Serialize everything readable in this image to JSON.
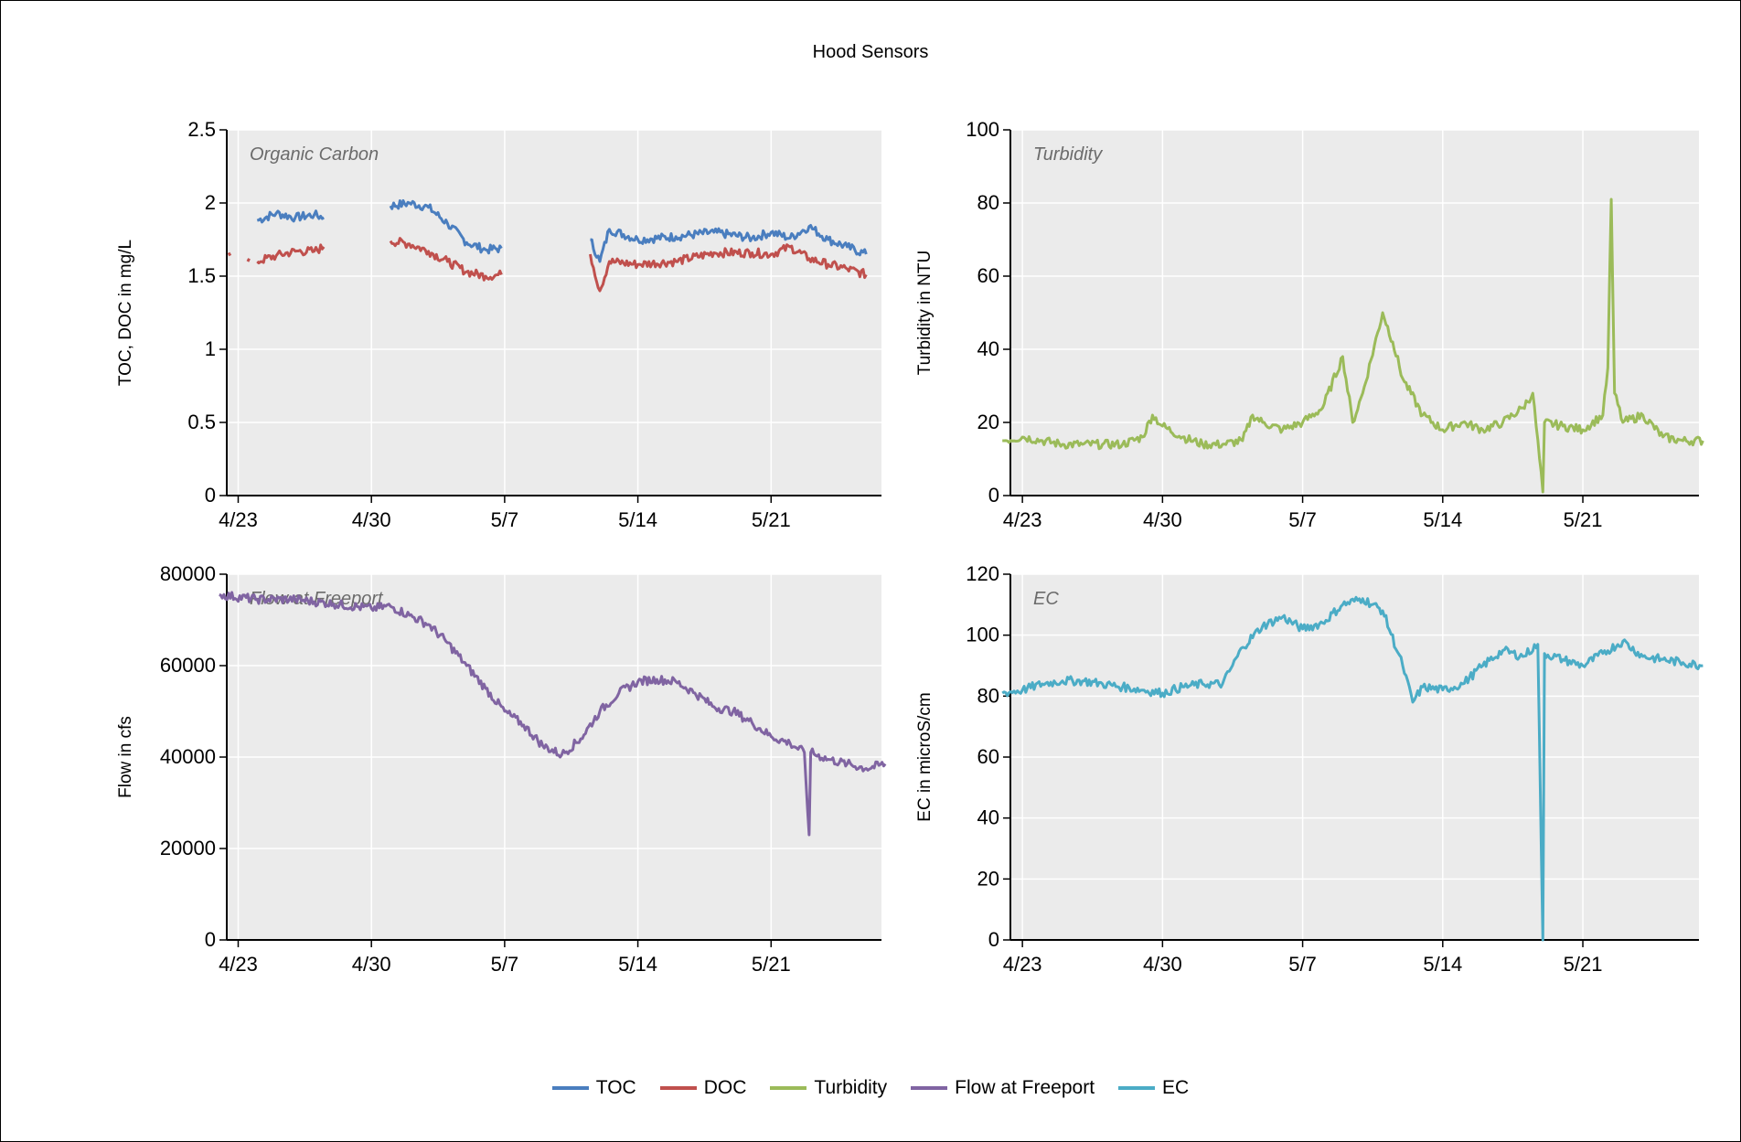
{
  "title": "Hood Sensors",
  "legend": [
    {
      "name": "TOC",
      "color": "#4a7ebf"
    },
    {
      "name": "DOC",
      "color": "#c0504d"
    },
    {
      "name": "Turbidity",
      "color": "#9bbb59"
    },
    {
      "name": "Flow at Freeport",
      "color": "#8064a2"
    },
    {
      "name": "EC",
      "color": "#4bacc6"
    }
  ],
  "chart_data": [
    {
      "type": "line",
      "panel": "top-left",
      "annotation": "Organic Carbon",
      "ylabel": "TOC, DOC in mg/L",
      "ylim": [
        0,
        2.5
      ],
      "yticks": [
        "0",
        "0.5",
        "1",
        "1.5",
        "2",
        "2.5"
      ],
      "xlim_days_label_domain": [
        "4/22",
        "5/27"
      ],
      "xticks": [
        "4/23",
        "4/30",
        "5/7",
        "5/14",
        "5/21"
      ],
      "series": [
        {
          "name": "TOC",
          "color": "#4a7ebf",
          "segments": [
            [
              [
                "4/24",
                1.88
              ],
              [
                "4/25",
                1.93
              ],
              [
                "4/26",
                1.9
              ],
              [
                "4/27",
                1.92
              ],
              [
                "4/27 12:00",
                1.9
              ]
            ],
            [
              [
                "5/1",
                1.98
              ],
              [
                "5/2",
                2.0
              ],
              [
                "5/3",
                1.97
              ],
              [
                "5/4",
                1.86
              ],
              [
                "5/5",
                1.73
              ],
              [
                "5/6",
                1.68
              ],
              [
                "5/6 20:00",
                1.69
              ]
            ],
            [
              [
                "5/11 12:00",
                1.75
              ],
              [
                "5/12",
                1.6
              ],
              [
                "5/12 12:00",
                1.82
              ],
              [
                "5/14",
                1.75
              ],
              [
                "5/16",
                1.77
              ],
              [
                "5/18",
                1.8
              ],
              [
                "5/20",
                1.76
              ],
              [
                "5/21",
                1.8
              ],
              [
                "5/22",
                1.76
              ],
              [
                "5/23",
                1.84
              ],
              [
                "5/24",
                1.75
              ],
              [
                "5/25",
                1.7
              ],
              [
                "5/26",
                1.65
              ]
            ]
          ]
        },
        {
          "name": "DOC",
          "color": "#c0504d",
          "segments": [
            [
              [
                "4/22 12:00",
                1.66
              ],
              [
                "4/22 14:00",
                1.64
              ]
            ],
            [
              [
                "4/23 12:00",
                1.6
              ],
              [
                "4/23 14:00",
                1.62
              ]
            ],
            [
              [
                "4/24",
                1.6
              ],
              [
                "4/25",
                1.64
              ],
              [
                "4/26",
                1.67
              ],
              [
                "4/27",
                1.67
              ],
              [
                "4/27 12:00",
                1.7
              ]
            ],
            [
              [
                "5/1",
                1.74
              ],
              [
                "5/2",
                1.72
              ],
              [
                "5/3",
                1.67
              ],
              [
                "5/4",
                1.6
              ],
              [
                "5/5",
                1.53
              ],
              [
                "5/6",
                1.5
              ],
              [
                "5/6 20:00",
                1.51
              ]
            ],
            [
              [
                "5/11 12:00",
                1.65
              ],
              [
                "5/12",
                1.4
              ],
              [
                "5/12 12:00",
                1.6
              ],
              [
                "5/14",
                1.58
              ],
              [
                "5/16",
                1.6
              ],
              [
                "5/18",
                1.66
              ],
              [
                "5/20",
                1.66
              ],
              [
                "5/21",
                1.65
              ],
              [
                "5/22",
                1.7
              ],
              [
                "5/23",
                1.62
              ],
              [
                "5/24",
                1.58
              ],
              [
                "5/25",
                1.55
              ],
              [
                "5/26",
                1.51
              ]
            ]
          ]
        }
      ]
    },
    {
      "type": "line",
      "panel": "top-right",
      "annotation": "Turbidity",
      "ylabel": "Turbidity in NTU",
      "ylim": [
        0,
        100
      ],
      "yticks": [
        "0",
        "20",
        "40",
        "60",
        "80",
        "100"
      ],
      "xticks": [
        "4/23",
        "4/30",
        "5/7",
        "5/14",
        "5/21"
      ],
      "series": [
        {
          "name": "Turbidity",
          "color": "#9bbb59",
          "points": [
            [
              "4/22",
              15
            ],
            [
              "4/23",
              16
            ],
            [
              "4/24",
              15
            ],
            [
              "4/25",
              14
            ],
            [
              "4/26",
              14
            ],
            [
              "4/27",
              14
            ],
            [
              "4/28",
              14
            ],
            [
              "4/29",
              16
            ],
            [
              "4/29 12:00",
              22
            ],
            [
              "4/30",
              19
            ],
            [
              "5/1",
              16
            ],
            [
              "5/2",
              14
            ],
            [
              "5/3",
              14
            ],
            [
              "5/4",
              15
            ],
            [
              "5/4 12:00",
              22
            ],
            [
              "5/5",
              20
            ],
            [
              "5/6",
              18
            ],
            [
              "5/7",
              20
            ],
            [
              "5/8",
              24
            ],
            [
              "5/9",
              38
            ],
            [
              "5/9 12:00",
              20
            ],
            [
              "5/10",
              28
            ],
            [
              "5/11",
              50
            ],
            [
              "5/11 12:00",
              42
            ],
            [
              "5/12",
              32
            ],
            [
              "5/13",
              22
            ],
            [
              "5/14",
              18
            ],
            [
              "5/15",
              20
            ],
            [
              "5/16",
              18
            ],
            [
              "5/17",
              20
            ],
            [
              "5/18",
              24
            ],
            [
              "5/18 12:00",
              28
            ],
            [
              "5/19",
              1
            ],
            [
              "5/19 02:00",
              20
            ],
            [
              "5/20",
              19
            ],
            [
              "5/21",
              18
            ],
            [
              "5/22",
              22
            ],
            [
              "5/22 06:00",
              35
            ],
            [
              "5/22 10:00",
              81
            ],
            [
              "5/22 14:00",
              28
            ],
            [
              "5/23",
              20
            ],
            [
              "5/24",
              22
            ],
            [
              "5/25",
              16
            ],
            [
              "5/26",
              15
            ],
            [
              "5/27",
              15
            ]
          ]
        }
      ]
    },
    {
      "type": "line",
      "panel": "bottom-left",
      "annotation": "Flow at Freeport",
      "ylabel": "Flow in cfs",
      "ylim": [
        0,
        80000
      ],
      "yticks": [
        "0",
        "20000",
        "40000",
        "60000",
        "80000"
      ],
      "xticks": [
        "4/23",
        "4/30",
        "5/7",
        "5/14",
        "5/21"
      ],
      "series": [
        {
          "name": "Flow at Freeport",
          "color": "#8064a2",
          "points": [
            [
              "4/22",
              75500
            ],
            [
              "4/24",
              74500
            ],
            [
              "4/26",
              74500
            ],
            [
              "4/28",
              73500
            ],
            [
              "4/30",
              72500
            ],
            [
              "5/1",
              73000
            ],
            [
              "5/2",
              71000
            ],
            [
              "5/3",
              69000
            ],
            [
              "5/4",
              65000
            ],
            [
              "5/5",
              60000
            ],
            [
              "5/6",
              55000
            ],
            [
              "5/7",
              50000
            ],
            [
              "5/8",
              47000
            ],
            [
              "5/9",
              42500
            ],
            [
              "5/10",
              40500
            ],
            [
              "5/11",
              44000
            ],
            [
              "5/12",
              50000
            ],
            [
              "5/13",
              54000
            ],
            [
              "5/14",
              56500
            ],
            [
              "5/15",
              57000
            ],
            [
              "5/16",
              56500
            ],
            [
              "5/17",
              54000
            ],
            [
              "5/18",
              51000
            ],
            [
              "5/19",
              50000
            ],
            [
              "5/20",
              47500
            ],
            [
              "5/21",
              44500
            ],
            [
              "5/22",
              43000
            ],
            [
              "5/22 18:00",
              41000
            ],
            [
              "5/23",
              23000
            ],
            [
              "5/23 02:00",
              41000
            ],
            [
              "5/24",
              39500
            ],
            [
              "5/25",
              38500
            ],
            [
              "5/26",
              37500
            ],
            [
              "5/27",
              38500
            ]
          ]
        }
      ]
    },
    {
      "type": "line",
      "panel": "bottom-right",
      "annotation": "EC",
      "ylabel": "EC in microS/cm",
      "ylim": [
        0,
        120
      ],
      "yticks": [
        "0",
        "20",
        "40",
        "60",
        "80",
        "100",
        "120"
      ],
      "xticks": [
        "4/23",
        "4/30",
        "5/7",
        "5/14",
        "5/21"
      ],
      "series": [
        {
          "name": "EC",
          "color": "#4bacc6",
          "points": [
            [
              "4/22",
              81
            ],
            [
              "4/23",
              82
            ],
            [
              "4/24",
              84
            ],
            [
              "4/25",
              85
            ],
            [
              "4/26",
              85
            ],
            [
              "4/27",
              84
            ],
            [
              "4/28",
              83
            ],
            [
              "4/29",
              82
            ],
            [
              "4/30",
              81
            ],
            [
              "5/1",
              83
            ],
            [
              "5/2",
              84
            ],
            [
              "5/3",
              84
            ],
            [
              "5/4",
              96
            ],
            [
              "5/5",
              103
            ],
            [
              "5/6",
              106
            ],
            [
              "5/7",
              102
            ],
            [
              "5/8",
              104
            ],
            [
              "5/9",
              110
            ],
            [
              "5/10",
              112
            ],
            [
              "5/11",
              108
            ],
            [
              "5/12",
              90
            ],
            [
              "5/12 12:00",
              78
            ],
            [
              "5/13",
              83
            ],
            [
              "5/14",
              82
            ],
            [
              "5/15",
              84
            ],
            [
              "5/16",
              90
            ],
            [
              "5/17",
              95
            ],
            [
              "5/18",
              93
            ],
            [
              "5/18 18:00",
              97
            ],
            [
              "5/19",
              0
            ],
            [
              "5/19 02:00",
              94
            ],
            [
              "5/20",
              92
            ],
            [
              "5/21",
              90
            ],
            [
              "5/22",
              94
            ],
            [
              "5/23",
              98
            ],
            [
              "5/24",
              93
            ],
            [
              "5/25",
              92
            ],
            [
              "5/26",
              91
            ],
            [
              "5/27",
              90
            ]
          ]
        }
      ]
    }
  ]
}
